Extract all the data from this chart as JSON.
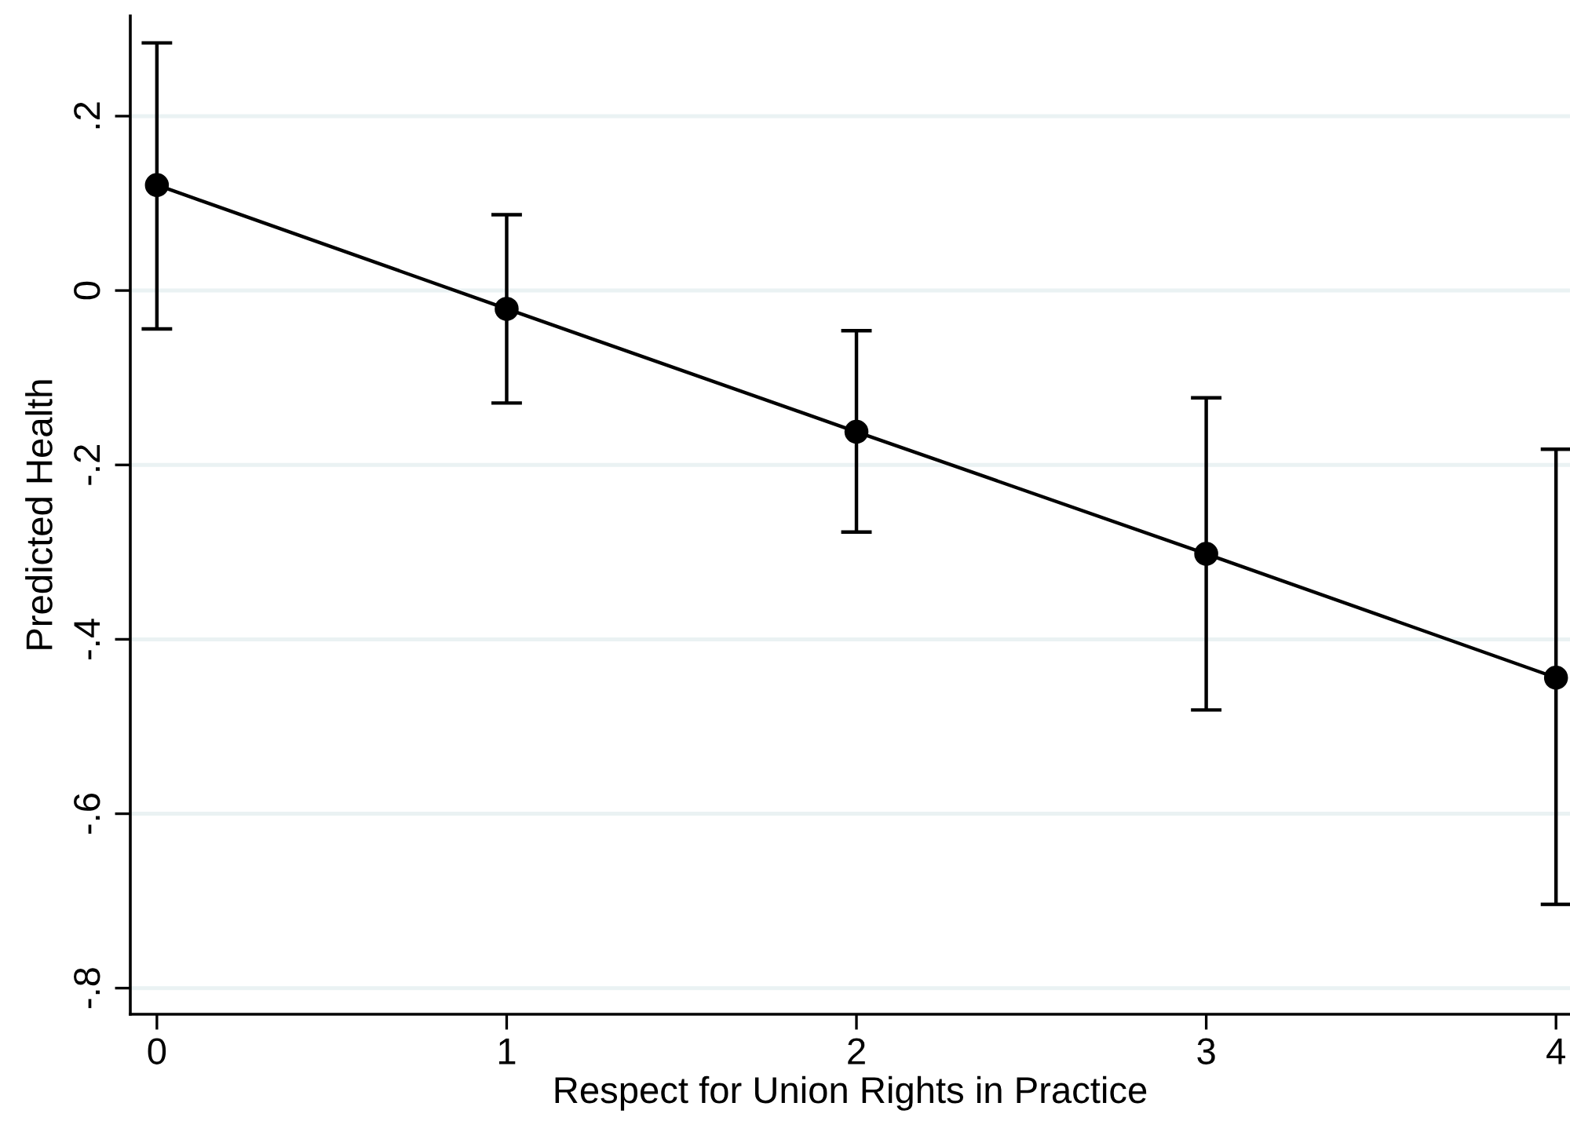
{
  "chart_data": {
    "type": "line",
    "xlabel": "Respect for Union Rights in Practice",
    "ylabel": "Predicted Health",
    "x": [
      0,
      1,
      2,
      3,
      4
    ],
    "series": [
      {
        "color": "#000000",
        "values": [
          0.121,
          -0.021,
          -0.162,
          -0.302,
          -0.444
        ],
        "errors": [
          [
            -0.044,
            0.284
          ],
          [
            -0.129,
            0.087
          ],
          [
            -0.277,
            -0.046
          ],
          [
            -0.481,
            -0.123
          ],
          [
            -0.704,
            -0.182
          ]
        ]
      }
    ],
    "xlim": [
      -0.076,
      4.04
    ],
    "xticks": [
      0,
      1,
      2,
      3,
      4
    ],
    "ylim": [
      -0.83,
      0.315
    ],
    "yticks": [
      {
        "value": -0.8,
        "label": "-.8"
      },
      {
        "value": -0.6,
        "label": "-.6"
      },
      {
        "value": -0.4,
        "label": "-.4"
      },
      {
        "value": -0.2,
        "label": "-.2"
      },
      {
        "value": 0,
        "label": "0"
      },
      {
        "value": 0.2,
        "label": ".2"
      }
    ],
    "grid": "y",
    "marker": "circle",
    "line_style": "solid"
  }
}
